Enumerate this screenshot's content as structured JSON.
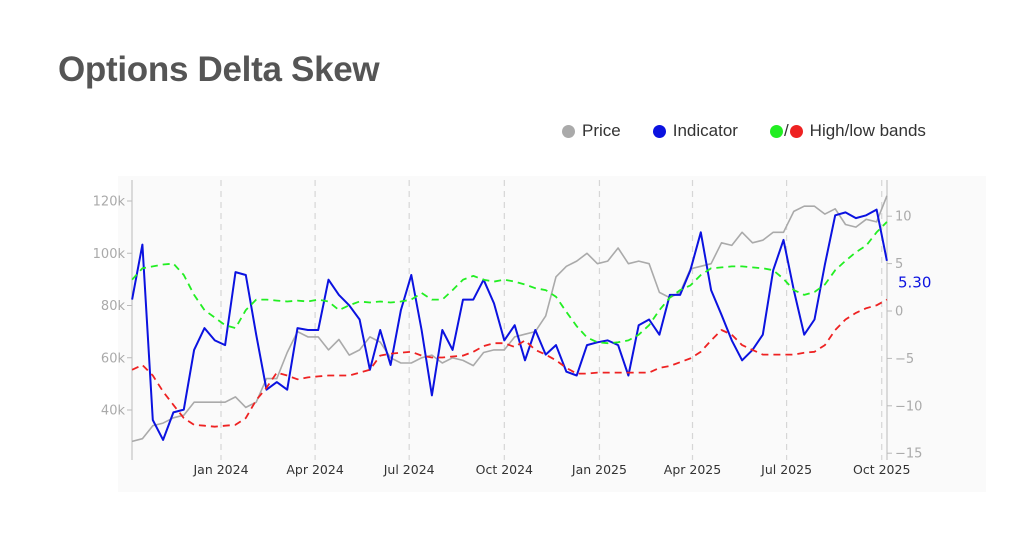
{
  "title": "Options Delta Skew",
  "legend": [
    {
      "label": "Price",
      "color": "#aaaaaa"
    },
    {
      "label": "Indicator",
      "color": "#0b12e0"
    },
    {
      "label": "High/low bands",
      "colors": [
        "#22ee22",
        "#ee2222"
      ],
      "separator": "/"
    }
  ],
  "chart_data": {
    "type": "line",
    "title": "Options Delta Skew",
    "x_ticks": [
      {
        "date": "2024-01-01",
        "label": "Jan 2024"
      },
      {
        "date": "2024-04-01",
        "label": "Apr 2024"
      },
      {
        "date": "2024-07-01",
        "label": "Jul 2024"
      },
      {
        "date": "2024-10-01",
        "label": "Oct 2024"
      },
      {
        "date": "2025-01-01",
        "label": "Jan 2025"
      },
      {
        "date": "2025-04-01",
        "label": "Apr 2025"
      },
      {
        "date": "2025-07-01",
        "label": "Jul 2025"
      },
      {
        "date": "2025-10-01",
        "label": "Oct 2025"
      }
    ],
    "y_left": {
      "ticks": [
        {
          "v": 40000,
          "label": "40k"
        },
        {
          "v": 60000,
          "label": "60k"
        },
        {
          "v": 80000,
          "label": "80k"
        },
        {
          "v": 100000,
          "label": "100k"
        },
        {
          "v": 120000,
          "label": "120k"
        }
      ]
    },
    "y_right": {
      "ticks": [
        {
          "v": -15,
          "label": "−15"
        },
        {
          "v": -10,
          "label": "−10"
        },
        {
          "v": -5,
          "label": "−5"
        },
        {
          "v": 0,
          "label": "0"
        },
        {
          "v": 5,
          "label": "5"
        },
        {
          "v": 10,
          "label": "10"
        }
      ]
    },
    "grid": "vertical dashed at x ticks",
    "last_value_label": "5.30",
    "dates": [
      "2023-10-07",
      "2023-10-17",
      "2023-10-27",
      "2023-11-06",
      "2023-11-16",
      "2023-11-26",
      "2023-12-06",
      "2023-12-16",
      "2023-12-26",
      "2024-01-05",
      "2024-01-15",
      "2024-01-25",
      "2024-02-04",
      "2024-02-14",
      "2024-02-24",
      "2024-03-05",
      "2024-03-15",
      "2024-03-25",
      "2024-04-04",
      "2024-04-14",
      "2024-04-24",
      "2024-05-04",
      "2024-05-14",
      "2024-05-24",
      "2024-06-03",
      "2024-06-13",
      "2024-06-23",
      "2024-07-03",
      "2024-07-13",
      "2024-07-23",
      "2024-08-02",
      "2024-08-12",
      "2024-08-22",
      "2024-09-01",
      "2024-09-11",
      "2024-09-21",
      "2024-10-01",
      "2024-10-11",
      "2024-10-21",
      "2024-10-31",
      "2024-11-10",
      "2024-11-20",
      "2024-11-30",
      "2024-12-10",
      "2024-12-20",
      "2024-12-30",
      "2025-01-09",
      "2025-01-19",
      "2025-01-29",
      "2025-02-08",
      "2025-02-18",
      "2025-02-28",
      "2025-03-10",
      "2025-03-20",
      "2025-03-30",
      "2025-04-09",
      "2025-04-19",
      "2025-04-29",
      "2025-05-09",
      "2025-05-19",
      "2025-05-29",
      "2025-06-08",
      "2025-06-18",
      "2025-06-28",
      "2025-07-08",
      "2025-07-18",
      "2025-07-28",
      "2025-08-07",
      "2025-08-17",
      "2025-08-27",
      "2025-09-06",
      "2025-09-16",
      "2025-09-26",
      "2025-10-06"
    ],
    "series": [
      {
        "name": "Price",
        "axis": "left",
        "color": "#aaaaaa",
        "dash": false,
        "values": [
          28000,
          29000,
          34000,
          35000,
          37000,
          38000,
          43000,
          43000,
          43000,
          43000,
          45000,
          41000,
          43000,
          52000,
          52000,
          62000,
          70000,
          68000,
          68000,
          63000,
          67000,
          61000,
          63000,
          68000,
          66000,
          60000,
          58000,
          58000,
          60000,
          61000,
          58000,
          60000,
          59000,
          57000,
          62000,
          63000,
          63000,
          68000,
          69000,
          70000,
          76000,
          91000,
          95000,
          97000,
          100000,
          96000,
          97000,
          102000,
          96000,
          97000,
          96000,
          85000,
          83000,
          85000,
          94000,
          95000,
          96000,
          104000,
          103000,
          108000,
          104000,
          105000,
          108000,
          108000,
          116000,
          118000,
          118000,
          115000,
          117000,
          111000,
          110000,
          113000,
          112000,
          122000
        ]
      },
      {
        "name": "Indicator",
        "axis": "right",
        "color": "#0b12e0",
        "dash": false,
        "values": [
          1.2,
          7.0,
          -11.5,
          -13.6,
          -10.7,
          -10.4,
          -4.1,
          -1.8,
          -3.1,
          -3.6,
          4.1,
          3.8,
          -2.5,
          -8.3,
          -7.5,
          -8.3,
          -1.8,
          -2.0,
          -2.0,
          3.3,
          1.7,
          0.6,
          -0.9,
          -6.2,
          -2.0,
          -5.7,
          0.1,
          3.8,
          -2.0,
          -8.9,
          -2.0,
          -4.1,
          1.2,
          1.2,
          3.3,
          0.8,
          -3.1,
          -1.5,
          -5.2,
          -2.0,
          -4.6,
          -3.6,
          -6.4,
          -6.8,
          -3.6,
          -3.3,
          -3.1,
          -3.6,
          -6.8,
          -1.5,
          -0.9,
          -2.5,
          1.7,
          1.7,
          4.3,
          8.3,
          2.2,
          -0.4,
          -3.1,
          -5.2,
          -4.1,
          -2.5,
          4.3,
          7.5,
          2.2,
          -2.5,
          -0.9,
          4.9,
          10.1,
          10.4,
          9.8,
          10.1,
          10.7,
          5.3
        ]
      },
      {
        "name": "High band",
        "axis": "right",
        "color": "#22ee22",
        "dash": true,
        "values": [
          3.3,
          4.5,
          4.7,
          4.9,
          5.0,
          3.8,
          1.7,
          0.1,
          -0.7,
          -1.5,
          -1.8,
          0.1,
          1.2,
          1.2,
          1.1,
          1.0,
          1.1,
          1.0,
          1.2,
          1.0,
          0.1,
          0.6,
          1.0,
          0.9,
          1.0,
          0.9,
          1.0,
          1.2,
          1.9,
          1.2,
          1.2,
          2.2,
          3.3,
          3.7,
          3.3,
          3.1,
          3.3,
          3.1,
          2.8,
          2.4,
          2.2,
          1.5,
          -0.1,
          -1.6,
          -2.8,
          -3.3,
          -3.4,
          -3.3,
          -3.1,
          -2.5,
          -1.5,
          0.1,
          1.4,
          2.2,
          2.7,
          3.8,
          4.5,
          4.6,
          4.7,
          4.7,
          4.6,
          4.5,
          4.3,
          3.4,
          2.2,
          1.7,
          2.0,
          2.8,
          4.3,
          5.3,
          6.2,
          6.9,
          8.3,
          9.4
        ]
      },
      {
        "name": "Low band",
        "axis": "right",
        "color": "#ee2222",
        "dash": true,
        "values": [
          -6.2,
          -5.7,
          -6.8,
          -8.5,
          -9.9,
          -11.3,
          -12.0,
          -12.1,
          -12.2,
          -12.1,
          -12.0,
          -11.3,
          -9.4,
          -8.1,
          -6.5,
          -6.8,
          -7.2,
          -7.0,
          -6.9,
          -6.8,
          -6.8,
          -6.8,
          -6.5,
          -6.2,
          -4.7,
          -4.5,
          -4.4,
          -4.3,
          -4.7,
          -4.9,
          -4.9,
          -4.8,
          -4.7,
          -4.3,
          -3.7,
          -3.4,
          -3.4,
          -3.8,
          -3.1,
          -4.1,
          -4.6,
          -5.2,
          -6.0,
          -6.6,
          -6.6,
          -6.5,
          -6.5,
          -6.5,
          -6.5,
          -6.5,
          -6.5,
          -6.0,
          -5.8,
          -5.4,
          -5.0,
          -4.3,
          -3.1,
          -2.0,
          -2.5,
          -3.6,
          -4.1,
          -4.6,
          -4.6,
          -4.6,
          -4.6,
          -4.4,
          -4.3,
          -3.6,
          -2.0,
          -0.9,
          -0.2,
          0.3,
          0.6,
          1.2
        ]
      }
    ]
  }
}
